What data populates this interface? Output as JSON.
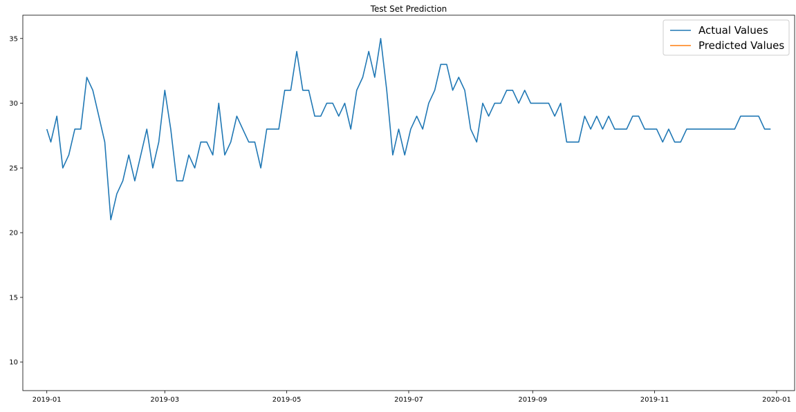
{
  "chart_data": {
    "type": "line",
    "title": "Test Set Prediction",
    "xlabel": "",
    "ylabel": "",
    "x_range": [
      "2018-12-20",
      "2020-01-10"
    ],
    "ylim": [
      7.8,
      36.8
    ],
    "x_ticks": [
      {
        "date": "2019-01-01",
        "label": "2019-01"
      },
      {
        "date": "2019-03-01",
        "label": "2019-03"
      },
      {
        "date": "2019-05-01",
        "label": "2019-05"
      },
      {
        "date": "2019-07-01",
        "label": "2019-07"
      },
      {
        "date": "2019-09-01",
        "label": "2019-09"
      },
      {
        "date": "2019-11-01",
        "label": "2019-11"
      },
      {
        "date": "2020-01-01",
        "label": "2020-01"
      }
    ],
    "y_ticks": [
      {
        "value": 10,
        "label": "10"
      },
      {
        "value": 15,
        "label": "15"
      },
      {
        "value": 20,
        "label": "20"
      },
      {
        "value": 25,
        "label": "25"
      },
      {
        "value": 30,
        "label": "30"
      },
      {
        "value": 35,
        "label": "35"
      }
    ],
    "grid": false,
    "legend_position": "top-right",
    "series": [
      {
        "name": "Actual Values",
        "color": "#1f77b4",
        "points": [
          [
            "2019-01-01",
            28
          ],
          [
            "2019-01-03",
            27
          ],
          [
            "2019-01-06",
            29
          ],
          [
            "2019-01-09",
            25
          ],
          [
            "2019-01-12",
            26
          ],
          [
            "2019-01-15",
            28
          ],
          [
            "2019-01-18",
            28
          ],
          [
            "2019-01-21",
            32
          ],
          [
            "2019-01-24",
            31
          ],
          [
            "2019-01-27",
            29
          ],
          [
            "2019-01-30",
            27
          ],
          [
            "2019-02-02",
            21
          ],
          [
            "2019-02-05",
            23
          ],
          [
            "2019-02-08",
            24
          ],
          [
            "2019-02-11",
            26
          ],
          [
            "2019-02-14",
            24
          ],
          [
            "2019-02-17",
            26
          ],
          [
            "2019-02-20",
            28
          ],
          [
            "2019-02-23",
            25
          ],
          [
            "2019-02-26",
            27
          ],
          [
            "2019-03-01",
            31
          ],
          [
            "2019-03-04",
            28
          ],
          [
            "2019-03-07",
            24
          ],
          [
            "2019-03-10",
            24
          ],
          [
            "2019-03-13",
            26
          ],
          [
            "2019-03-16",
            25
          ],
          [
            "2019-03-19",
            27
          ],
          [
            "2019-03-22",
            27
          ],
          [
            "2019-03-25",
            26
          ],
          [
            "2019-03-28",
            30
          ],
          [
            "2019-03-31",
            26
          ],
          [
            "2019-04-03",
            27
          ],
          [
            "2019-04-06",
            29
          ],
          [
            "2019-04-09",
            28
          ],
          [
            "2019-04-12",
            27
          ],
          [
            "2019-04-15",
            27
          ],
          [
            "2019-04-18",
            25
          ],
          [
            "2019-04-21",
            28
          ],
          [
            "2019-04-24",
            28
          ],
          [
            "2019-04-27",
            28
          ],
          [
            "2019-04-30",
            31
          ],
          [
            "2019-05-03",
            31
          ],
          [
            "2019-05-06",
            34
          ],
          [
            "2019-05-09",
            31
          ],
          [
            "2019-05-12",
            31
          ],
          [
            "2019-05-15",
            29
          ],
          [
            "2019-05-18",
            29
          ],
          [
            "2019-05-21",
            30
          ],
          [
            "2019-05-24",
            30
          ],
          [
            "2019-05-27",
            29
          ],
          [
            "2019-05-30",
            30
          ],
          [
            "2019-06-02",
            28
          ],
          [
            "2019-06-05",
            31
          ],
          [
            "2019-06-08",
            32
          ],
          [
            "2019-06-11",
            34
          ],
          [
            "2019-06-14",
            32
          ],
          [
            "2019-06-17",
            35
          ],
          [
            "2019-06-20",
            31
          ],
          [
            "2019-06-23",
            26
          ],
          [
            "2019-06-26",
            28
          ],
          [
            "2019-06-29",
            26
          ],
          [
            "2019-07-02",
            28
          ],
          [
            "2019-07-05",
            29
          ],
          [
            "2019-07-08",
            28
          ],
          [
            "2019-07-11",
            30
          ],
          [
            "2019-07-14",
            31
          ],
          [
            "2019-07-17",
            33
          ],
          [
            "2019-07-20",
            33
          ],
          [
            "2019-07-23",
            31
          ],
          [
            "2019-07-26",
            32
          ],
          [
            "2019-07-29",
            31
          ],
          [
            "2019-08-01",
            28
          ],
          [
            "2019-08-04",
            27
          ],
          [
            "2019-08-07",
            30
          ],
          [
            "2019-08-10",
            29
          ],
          [
            "2019-08-13",
            30
          ],
          [
            "2019-08-16",
            30
          ],
          [
            "2019-08-19",
            31
          ],
          [
            "2019-08-22",
            31
          ],
          [
            "2019-08-25",
            30
          ],
          [
            "2019-08-28",
            31
          ],
          [
            "2019-08-31",
            30
          ],
          [
            "2019-09-03",
            30
          ],
          [
            "2019-09-06",
            30
          ],
          [
            "2019-09-09",
            30
          ],
          [
            "2019-09-12",
            29
          ],
          [
            "2019-09-15",
            30
          ],
          [
            "2019-09-18",
            27
          ],
          [
            "2019-09-21",
            27
          ],
          [
            "2019-09-24",
            27
          ],
          [
            "2019-09-27",
            29
          ],
          [
            "2019-09-30",
            28
          ],
          [
            "2019-10-03",
            29
          ],
          [
            "2019-10-06",
            28
          ],
          [
            "2019-10-09",
            29
          ],
          [
            "2019-10-12",
            28
          ],
          [
            "2019-10-15",
            28
          ],
          [
            "2019-10-18",
            28
          ],
          [
            "2019-10-21",
            29
          ],
          [
            "2019-10-24",
            29
          ],
          [
            "2019-10-27",
            28
          ],
          [
            "2019-10-30",
            28
          ],
          [
            "2019-11-02",
            28
          ],
          [
            "2019-11-05",
            27
          ],
          [
            "2019-11-08",
            28
          ],
          [
            "2019-11-11",
            27
          ],
          [
            "2019-11-14",
            27
          ],
          [
            "2019-11-17",
            28
          ],
          [
            "2019-11-20",
            28
          ],
          [
            "2019-11-23",
            28
          ],
          [
            "2019-11-26",
            28
          ],
          [
            "2019-11-29",
            28
          ],
          [
            "2019-12-02",
            28
          ],
          [
            "2019-12-05",
            28
          ],
          [
            "2019-12-08",
            28
          ],
          [
            "2019-12-11",
            28
          ],
          [
            "2019-12-14",
            29
          ],
          [
            "2019-12-17",
            29
          ],
          [
            "2019-12-20",
            29
          ],
          [
            "2019-12-23",
            29
          ],
          [
            "2019-12-26",
            28
          ],
          [
            "2019-12-29",
            28
          ]
        ]
      }
    ]
  }
}
